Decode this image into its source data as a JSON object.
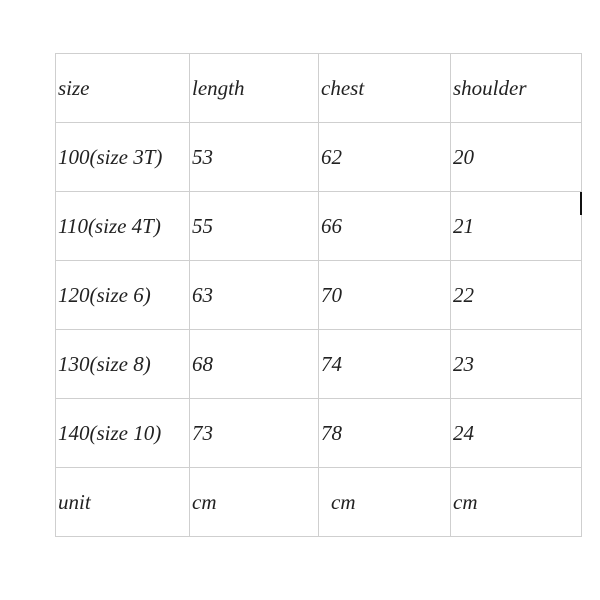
{
  "table": {
    "headers": [
      "size",
      "length",
      "chest",
      "shoulder"
    ],
    "rows": [
      [
        "100(size 3T)",
        "53",
        "62",
        "20"
      ],
      [
        "110(size 4T)",
        "55",
        "66",
        "21"
      ],
      [
        "120(size 6)",
        "63",
        "70",
        "22"
      ],
      [
        "130(size 8)",
        "68",
        "74",
        "23"
      ],
      [
        "140(size 10)",
        "73",
        "78",
        "24"
      ],
      [
        "unit",
        "cm",
        "cm",
        "cm"
      ]
    ]
  }
}
